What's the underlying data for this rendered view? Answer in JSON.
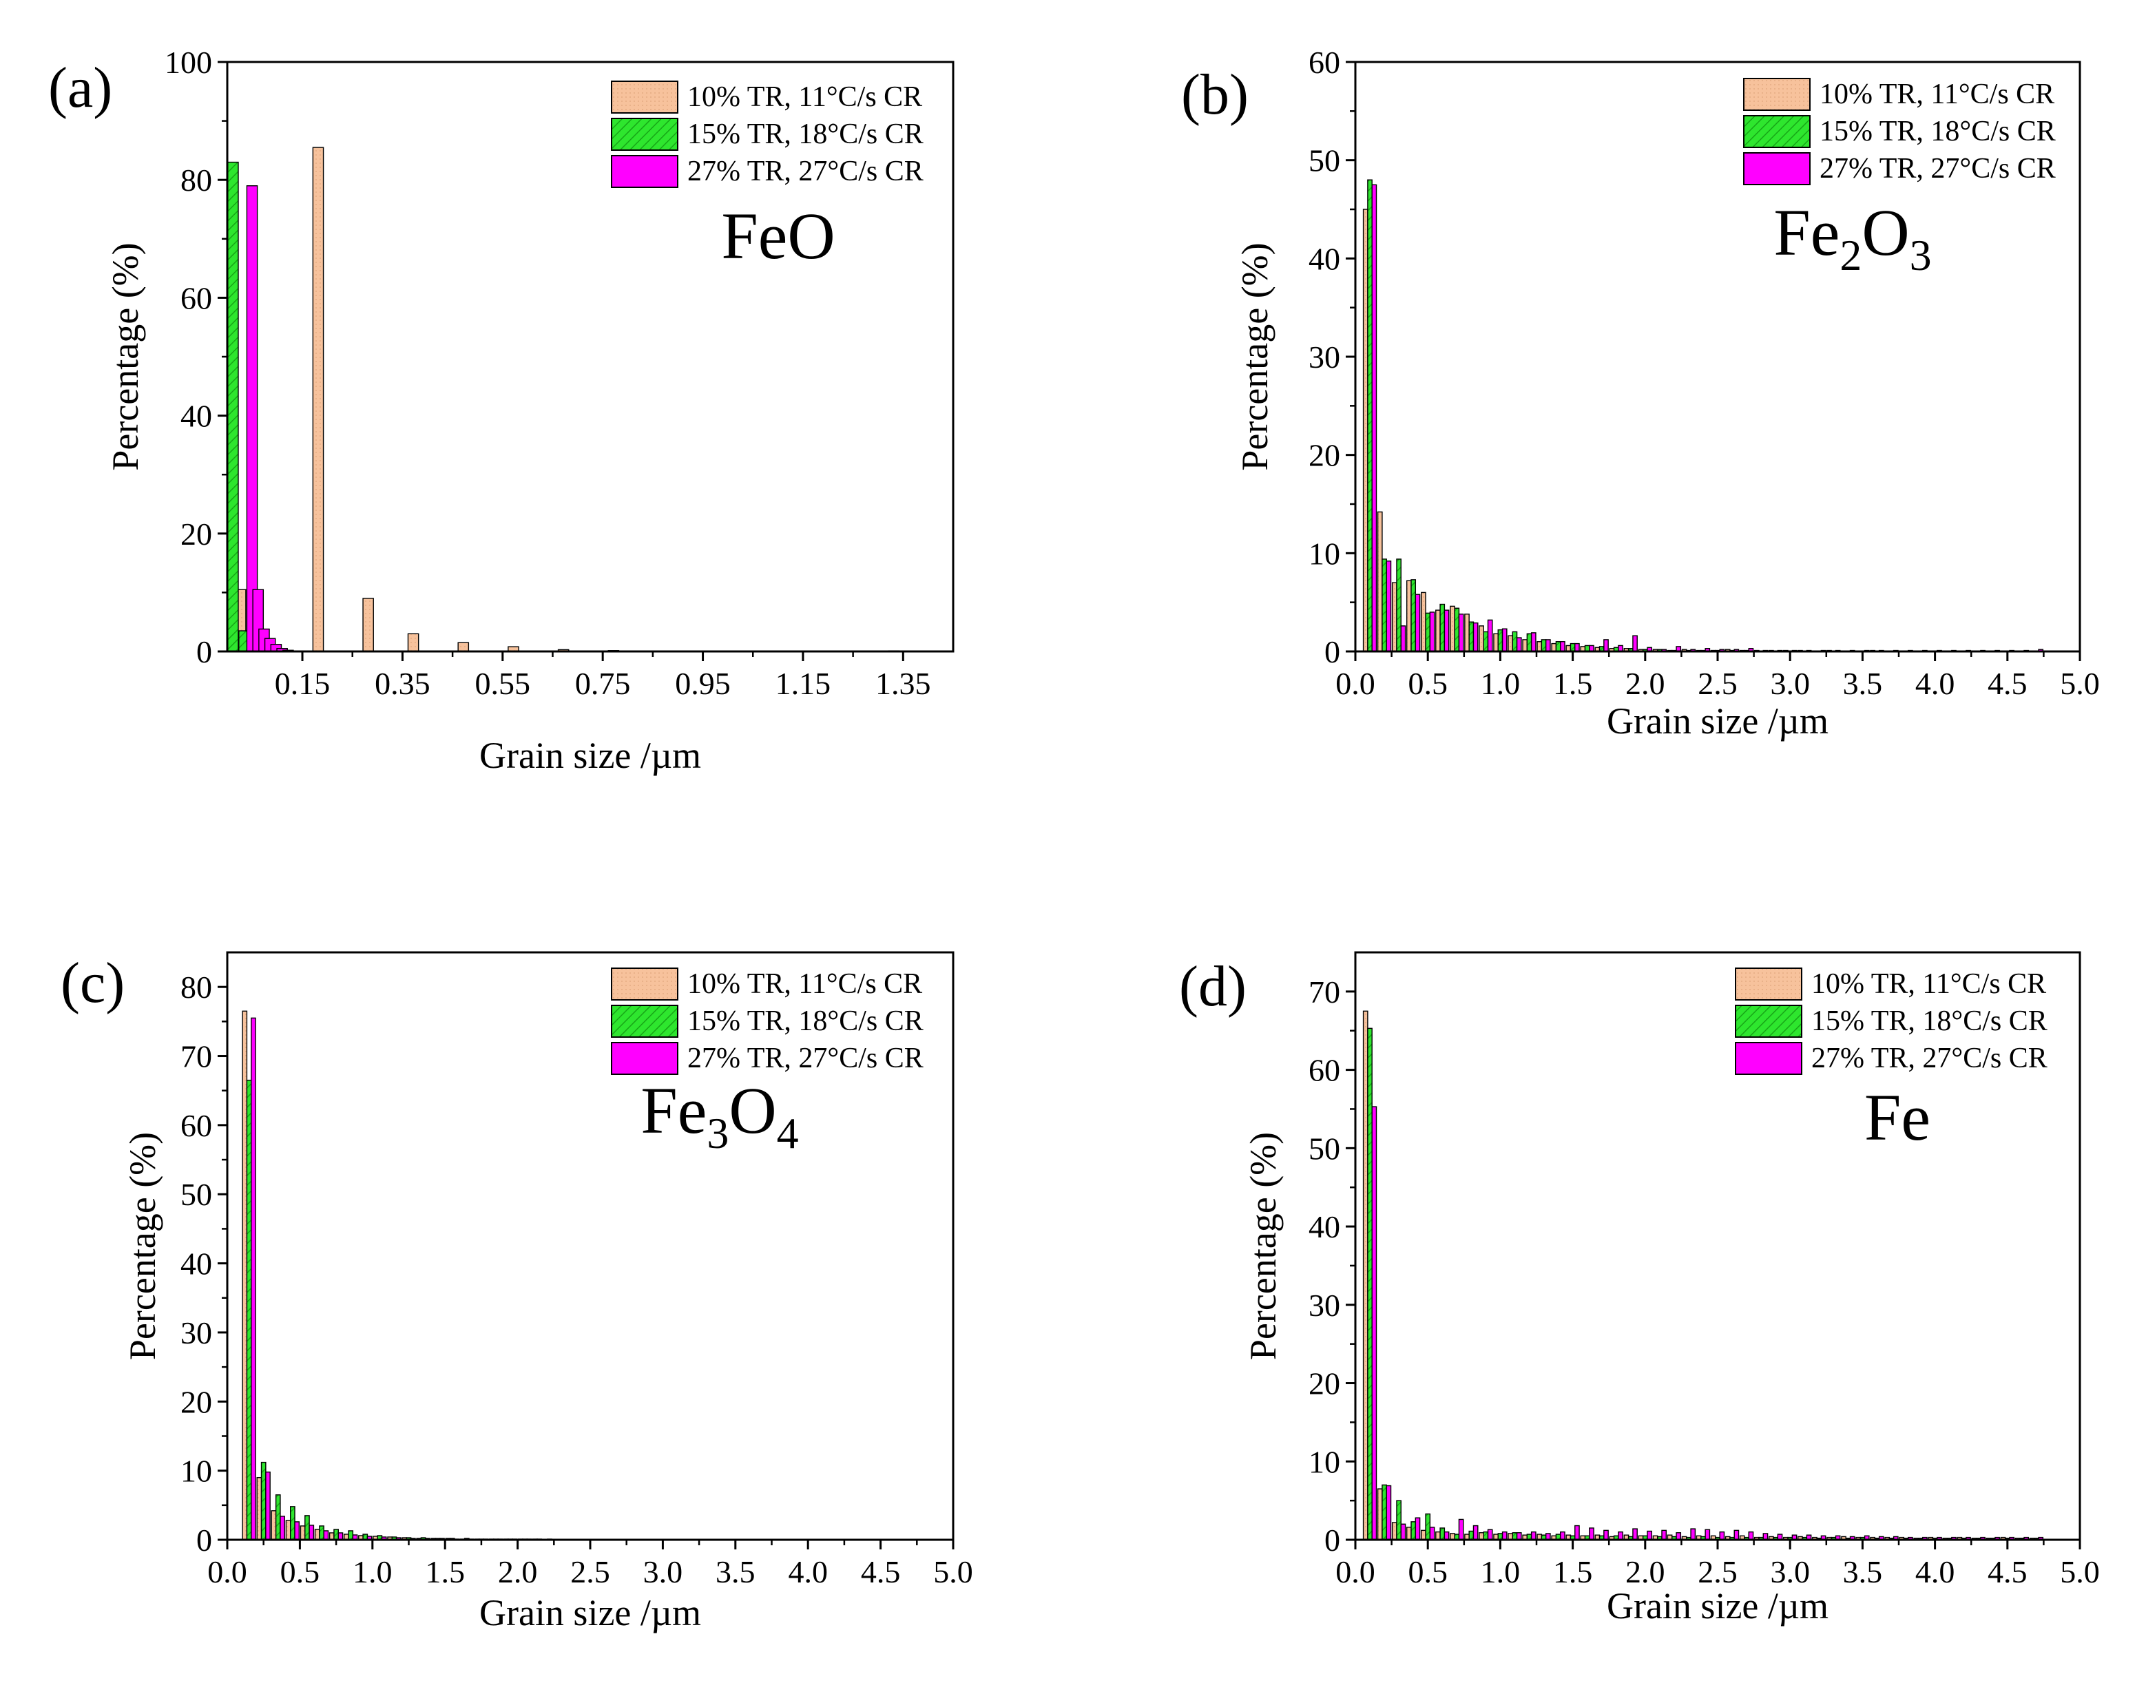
{
  "colors": {
    "s10": "#f7c29c",
    "s15": "#2ee62e",
    "s27": "#ff00ff"
  },
  "chart_data": [
    {
      "panel": "(a)",
      "type": "bar",
      "material": "FeO",
      "material_parts": [
        {
          "t": "FeO",
          "sub": false
        }
      ],
      "xlabel": "Grain size /µm",
      "ylabel": "Percentage (%)",
      "xlim": [
        0,
        1.45
      ],
      "ylim": [
        0,
        100
      ],
      "xticks": [
        0.15,
        0.35,
        0.55,
        0.75,
        0.95,
        1.15,
        1.35
      ],
      "xtick_labels": [
        "0.15",
        "0.35",
        "0.55",
        "0.75",
        "0.95",
        "1.15",
        "1.35"
      ],
      "yticks": [
        0,
        20,
        40,
        60,
        80,
        100
      ],
      "ytick_labels": [
        "0",
        "20",
        "40",
        "60",
        "80",
        "100"
      ],
      "bar_width": 0.022,
      "legend_position": "top-right",
      "series": [
        {
          "name": "10% TR, 11°C/s CR",
          "x": [
            0.015,
            0.17,
            0.27,
            0.36,
            0.46,
            0.56,
            0.66,
            0.76,
            1.32
          ],
          "values": [
            10.5,
            85.5,
            9,
            3,
            1.5,
            0.8,
            0.3,
            0.15,
            0.1
          ]
        },
        {
          "name": "15% TR, 18°C/s CR",
          "x": [
            0.0,
            0.022,
            0.044
          ],
          "values": [
            83,
            3.5,
            0.5
          ]
        },
        {
          "name": "27% TR, 27°C/s CR",
          "x": [
            0.038,
            0.05,
            0.062,
            0.074,
            0.086,
            0.098,
            0.11
          ],
          "values": [
            79,
            10.5,
            3.8,
            2.2,
            1.2,
            0.5,
            0.2
          ]
        }
      ]
    },
    {
      "panel": "(b)",
      "type": "bar",
      "material": "Fe2O3",
      "material_parts": [
        {
          "t": "Fe",
          "sub": false
        },
        {
          "t": "2",
          "sub": true
        },
        {
          "t": "O",
          "sub": false
        },
        {
          "t": "3",
          "sub": true
        }
      ],
      "xlabel": "Grain size /µm",
      "ylabel": "Percentage (%)",
      "xlim": [
        0,
        5
      ],
      "ylim": [
        0,
        60
      ],
      "xticks": [
        0,
        0.5,
        1,
        1.5,
        2,
        2.5,
        3,
        3.5,
        4,
        4.5,
        5
      ],
      "xtick_labels": [
        "0.0",
        "0.5",
        "1.0",
        "1.5",
        "2.0",
        "2.5",
        "3.0",
        "3.5",
        "4.0",
        "4.5",
        "5.0"
      ],
      "yticks": [
        0,
        10,
        20,
        30,
        40,
        50,
        60
      ],
      "ytick_labels": [
        "0",
        "10",
        "20",
        "30",
        "40",
        "50",
        "60"
      ],
      "bar_width": 0.03,
      "bar_step": 0.1,
      "bar_start": 0.1,
      "legend_position": "top-right",
      "series": [
        {
          "name": "10% TR, 11°C/s CR",
          "values": [
            45,
            14.2,
            7.0,
            7.2,
            6.0,
            4.2,
            4.6,
            3.8,
            2.6,
            1.8,
            1.6,
            1.2,
            1.0,
            0.8,
            0.6,
            0.5,
            0.4,
            0.3,
            0.3,
            0.2,
            0.2,
            0.1,
            0.2,
            0.1,
            0.1,
            0.2,
            0.1,
            0.1,
            0.1,
            0.1,
            0.1,
            0,
            0.1,
            0,
            0,
            0.1,
            0,
            0,
            0,
            0,
            0,
            0,
            0,
            0,
            0,
            0,
            0
          ]
        },
        {
          "name": "15% TR, 18°C/s CR",
          "values": [
            48,
            9.4,
            9.4,
            7.3,
            3.9,
            4.8,
            4.4,
            3.0,
            2.0,
            2.2,
            2.0,
            1.8,
            1.2,
            1.0,
            0.8,
            0.6,
            0.5,
            0.4,
            0.3,
            0.2,
            0.2,
            0.1,
            0.1,
            0.1,
            0.1,
            0.1,
            0.1,
            0,
            0,
            0,
            0,
            0,
            0,
            0,
            0,
            0,
            0,
            0,
            0,
            0,
            0,
            0,
            0,
            0,
            0,
            0,
            0
          ]
        },
        {
          "name": "27% TR, 27°C/s CR",
          "values": [
            47.5,
            9.2,
            2.6,
            5.8,
            4.0,
            4.2,
            3.8,
            2.9,
            3.2,
            2.3,
            1.4,
            1.9,
            1.2,
            1.0,
            0.8,
            0.6,
            1.2,
            0.6,
            1.6,
            0.4,
            0.2,
            0.5,
            0.2,
            0.3,
            0.2,
            0.2,
            0.3,
            0.1,
            0.1,
            0.1,
            0.1,
            0.1,
            0.1,
            0.1,
            0.1,
            0.1,
            0.1,
            0.1,
            0.1,
            0.1,
            0.1,
            0.1,
            0.1,
            0.1,
            0.1,
            0.1,
            0.2
          ]
        }
      ]
    },
    {
      "panel": "(c)",
      "type": "bar",
      "material": "Fe3O4",
      "material_parts": [
        {
          "t": "Fe",
          "sub": false
        },
        {
          "t": "3",
          "sub": true
        },
        {
          "t": "O",
          "sub": false
        },
        {
          "t": "4",
          "sub": true
        }
      ],
      "xlabel": "Grain size /µm",
      "ylabel": "Percentage (%)",
      "xlim": [
        0,
        5
      ],
      "ylim": [
        0,
        85
      ],
      "xticks": [
        0,
        0.5,
        1,
        1.5,
        2,
        2.5,
        3,
        3.5,
        4,
        4.5,
        5
      ],
      "xtick_labels": [
        "0.0",
        "0.5",
        "1.0",
        "1.5",
        "2.0",
        "2.5",
        "3.0",
        "3.5",
        "4.0",
        "4.5",
        "5.0"
      ],
      "yticks": [
        0,
        10,
        20,
        30,
        40,
        50,
        60,
        70,
        80
      ],
      "ytick_labels": [
        "0",
        "10",
        "20",
        "30",
        "40",
        "50",
        "60",
        "70",
        "80"
      ],
      "bar_width": 0.03,
      "bar_step": 0.1,
      "bar_start": 0.15,
      "legend_position": "top-right",
      "series": [
        {
          "name": "10% TR, 11°C/s CR",
          "values": [
            76.5,
            9.0,
            4.2,
            2.8,
            2.0,
            1.5,
            1.0,
            0.8,
            0.6,
            0.5,
            0.4,
            0.3,
            0.2,
            0.2,
            0.2,
            0.1,
            0.1,
            0.1,
            0.1,
            0.1,
            0.1,
            0.1,
            0,
            0,
            0,
            0,
            0,
            0,
            0,
            0,
            0,
            0,
            0,
            0,
            0,
            0,
            0,
            0,
            0,
            0,
            0,
            0,
            0,
            0,
            0,
            0,
            0
          ]
        },
        {
          "name": "15% TR, 18°C/s CR",
          "values": [
            66.5,
            11.2,
            6.5,
            4.8,
            3.5,
            2.0,
            1.5,
            1.3,
            0.8,
            0.6,
            0.4,
            0.3,
            0.3,
            0.2,
            0.2,
            0.2,
            0.1,
            0.1,
            0.1,
            0.1,
            0.1,
            0,
            0,
            0,
            0,
            0,
            0,
            0,
            0,
            0,
            0,
            0,
            0,
            0,
            0,
            0,
            0,
            0,
            0,
            0,
            0,
            0,
            0,
            0,
            0,
            0,
            0
          ]
        },
        {
          "name": "27% TR, 27°C/s CR",
          "values": [
            75.5,
            9.8,
            3.4,
            2.6,
            2.1,
            1.3,
            1.0,
            0.7,
            0.5,
            0.4,
            0.3,
            0.2,
            0.2,
            0.2,
            0.1,
            0.1,
            0.1,
            0.1,
            0.1,
            0.1,
            0,
            0,
            0,
            0,
            0,
            0,
            0,
            0,
            0,
            0,
            0,
            0,
            0,
            0,
            0,
            0,
            0,
            0,
            0,
            0,
            0,
            0,
            0,
            0,
            0,
            0,
            0
          ]
        }
      ]
    },
    {
      "panel": "(d)",
      "type": "bar",
      "material": "Fe",
      "material_parts": [
        {
          "t": "Fe",
          "sub": false
        }
      ],
      "xlabel": "Grain size /µm",
      "ylabel": "Percentage (%)",
      "xlim": [
        0,
        5
      ],
      "ylim": [
        0,
        75
      ],
      "xticks": [
        0,
        0.5,
        1,
        1.5,
        2,
        2.5,
        3,
        3.5,
        4,
        4.5,
        5
      ],
      "xtick_labels": [
        "0.0",
        "0.5",
        "1.0",
        "1.5",
        "2.0",
        "2.5",
        "3.0",
        "3.5",
        "4.0",
        "4.5",
        "5.0"
      ],
      "yticks": [
        0,
        10,
        20,
        30,
        40,
        50,
        60,
        70
      ],
      "ytick_labels": [
        "0",
        "10",
        "20",
        "30",
        "40",
        "50",
        "60",
        "70"
      ],
      "bar_width": 0.03,
      "bar_step": 0.1,
      "bar_start": 0.1,
      "legend_position": "top-right",
      "series": [
        {
          "name": "10% TR, 11°C/s CR",
          "values": [
            67.5,
            6.5,
            2.2,
            1.6,
            1.2,
            1.0,
            0.8,
            0.7,
            0.9,
            0.7,
            0.8,
            0.6,
            0.7,
            0.5,
            0.6,
            0.5,
            0.6,
            0.4,
            0.6,
            0.5,
            0.5,
            0.6,
            0.4,
            0.5,
            0.5,
            0.4,
            0.5,
            0.3,
            0.4,
            0.3,
            0.4,
            0.3,
            0.3,
            0.4,
            0.3,
            0.3,
            0.3,
            0.3,
            0.2,
            0.3,
            0.2,
            0.3,
            0.2,
            0.2,
            0.3,
            0.2,
            0.2
          ]
        },
        {
          "name": "15% TR, 18°C/s CR",
          "values": [
            65.3,
            7.0,
            5.0,
            2.3,
            3.3,
            1.5,
            0.7,
            1.1,
            1.0,
            0.8,
            0.9,
            0.7,
            0.6,
            0.7,
            0.5,
            0.5,
            0.5,
            0.5,
            0.4,
            0.5,
            0.4,
            0.4,
            0.3,
            0.4,
            0.3,
            0.3,
            0.3,
            0.3,
            0.3,
            0.3,
            0.3,
            0.2,
            0.3,
            0.2,
            0.3,
            0.2,
            0.2,
            0.2,
            0.2,
            0.2,
            0.2,
            0.2,
            0.2,
            0.2,
            0.2,
            0.2,
            0.2
          ]
        },
        {
          "name": "27% TR, 27°C/s CR",
          "values": [
            55.3,
            6.9,
            2.0,
            2.8,
            1.6,
            1.0,
            2.6,
            1.8,
            1.3,
            1.0,
            0.9,
            1.0,
            0.8,
            1.0,
            1.8,
            1.5,
            1.2,
            1.0,
            1.4,
            1.1,
            1.2,
            0.9,
            1.4,
            1.3,
            1.0,
            1.2,
            1.0,
            0.8,
            0.7,
            0.6,
            0.6,
            0.5,
            0.5,
            0.4,
            0.5,
            0.4,
            0.4,
            0.3,
            0.3,
            0.3,
            0.3,
            0.3,
            0.3,
            0.3,
            0.3,
            0.3,
            0.3
          ]
        }
      ]
    }
  ]
}
